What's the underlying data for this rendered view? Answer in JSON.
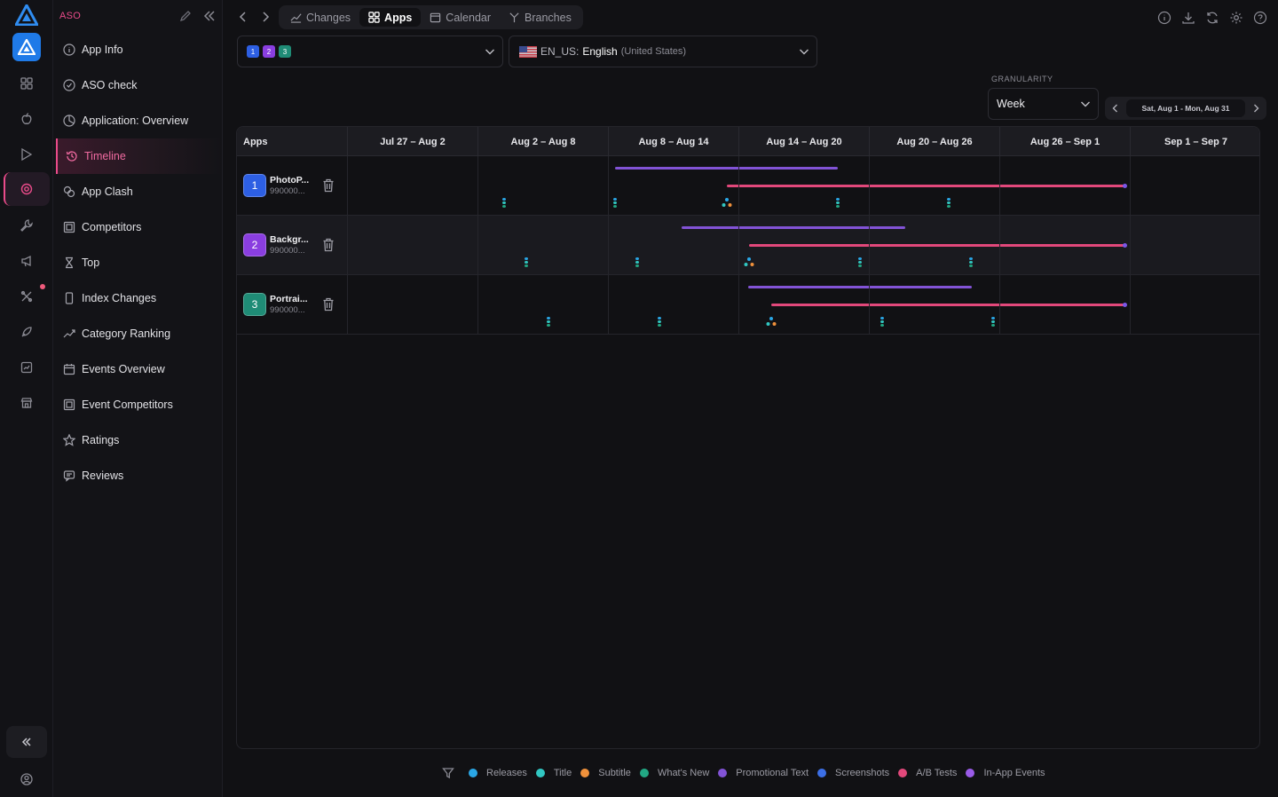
{
  "sidebar": {
    "title": "ASO",
    "items": [
      {
        "label": "App Info",
        "icon": "info-icon",
        "active": false
      },
      {
        "label": "ASO check",
        "icon": "check-circle-icon",
        "active": false
      },
      {
        "label": "Application: Overview",
        "icon": "pie-chart-icon",
        "active": false
      },
      {
        "label": "Timeline",
        "icon": "history-icon",
        "active": true
      },
      {
        "label": "App Clash",
        "icon": "clash-icon",
        "active": false
      },
      {
        "label": "Competitors",
        "icon": "competitors-icon",
        "active": false
      },
      {
        "label": "Top",
        "icon": "hourglass-icon",
        "active": false
      },
      {
        "label": "Index Changes",
        "icon": "phone-icon",
        "active": false
      },
      {
        "label": "Category Ranking",
        "icon": "trend-icon",
        "active": false
      },
      {
        "label": "Events Overview",
        "icon": "calendar-icon",
        "active": false
      },
      {
        "label": "Event Competitors",
        "icon": "competitors-icon",
        "active": false
      },
      {
        "label": "Ratings",
        "icon": "star-icon",
        "active": false
      },
      {
        "label": "Reviews",
        "icon": "review-icon",
        "active": false
      }
    ]
  },
  "tabs": [
    {
      "label": "Changes",
      "icon": "trend-icon",
      "active": false
    },
    {
      "label": "Apps",
      "icon": "apps-grid-icon",
      "active": true
    },
    {
      "label": "Calendar",
      "icon": "calendar-icon",
      "active": false
    },
    {
      "label": "Branches",
      "icon": "branch-icon",
      "active": false
    }
  ],
  "app_selector": {
    "chips": [
      "1",
      "2",
      "3"
    ]
  },
  "language_selector": {
    "code": "EN_US:",
    "name": "English",
    "region": "(United States)"
  },
  "granularity": {
    "label": "GRANULARITY",
    "value": "Week"
  },
  "date_range": "Sat, Aug 1 - Mon, Aug 31",
  "table": {
    "apps_header": "Apps",
    "weeks": [
      "Jul 27 – Aug 2",
      "Aug 2 – Aug 8",
      "Aug 8 – Aug 14",
      "Aug 14 – Aug 20",
      "Aug 20 – Aug 26",
      "Aug 26 – Sep 1",
      "Sep 1 – Sep 7"
    ],
    "rows": [
      {
        "number": "1",
        "name": "PhotoP...",
        "id": "990000...",
        "color": "#2d5fe3"
      },
      {
        "number": "2",
        "name": "Backgr...",
        "id": "990000...",
        "color": "#8a3ee0"
      },
      {
        "number": "3",
        "name": "Portrai...",
        "id": "990000...",
        "color": "#1f8c76"
      }
    ]
  },
  "legend": [
    {
      "label": "Releases",
      "color": "#2aa7e6"
    },
    {
      "label": "Title",
      "color": "#31c7c2"
    },
    {
      "label": "Subtitle",
      "color": "#f0913b"
    },
    {
      "label": "What's New",
      "color": "#22a884"
    },
    {
      "label": "Promotional Text",
      "color": "#8253d6"
    },
    {
      "label": "Screenshots",
      "color": "#3c6fe6"
    },
    {
      "label": "A/B Tests",
      "color": "#e2487b"
    },
    {
      "label": "In-App Events",
      "color": "#9a5be8"
    }
  ]
}
